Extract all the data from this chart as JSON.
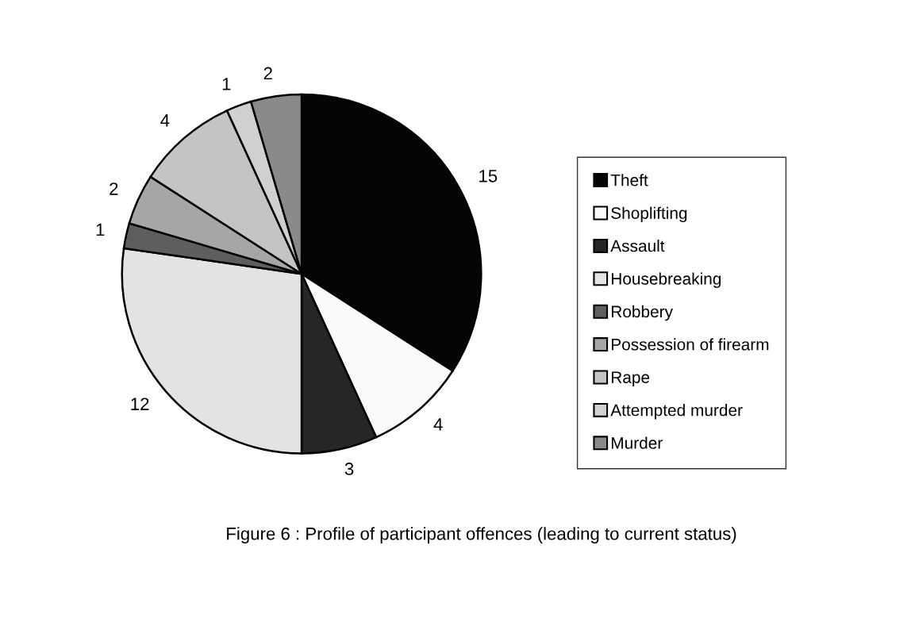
{
  "chart_data": {
    "type": "pie",
    "title": "Figure 6 : Profile of participant offences (leading to current status)",
    "categories": [
      "Theft",
      "Shoplifting",
      "Assault",
      "Housebreaking",
      "Robbery",
      "Possession of firearm",
      "Rape",
      "Attempted murder",
      "Murder"
    ],
    "values": [
      15,
      4,
      3,
      12,
      1,
      2,
      4,
      1,
      2
    ],
    "colors": [
      "#050505",
      "#fafafa",
      "#262626",
      "#e3e3e3",
      "#5e5e5e",
      "#a6a6a6",
      "#c4c4c4",
      "#d0d0d0",
      "#8a8a8a"
    ],
    "data_labels": true,
    "legend": "right"
  }
}
